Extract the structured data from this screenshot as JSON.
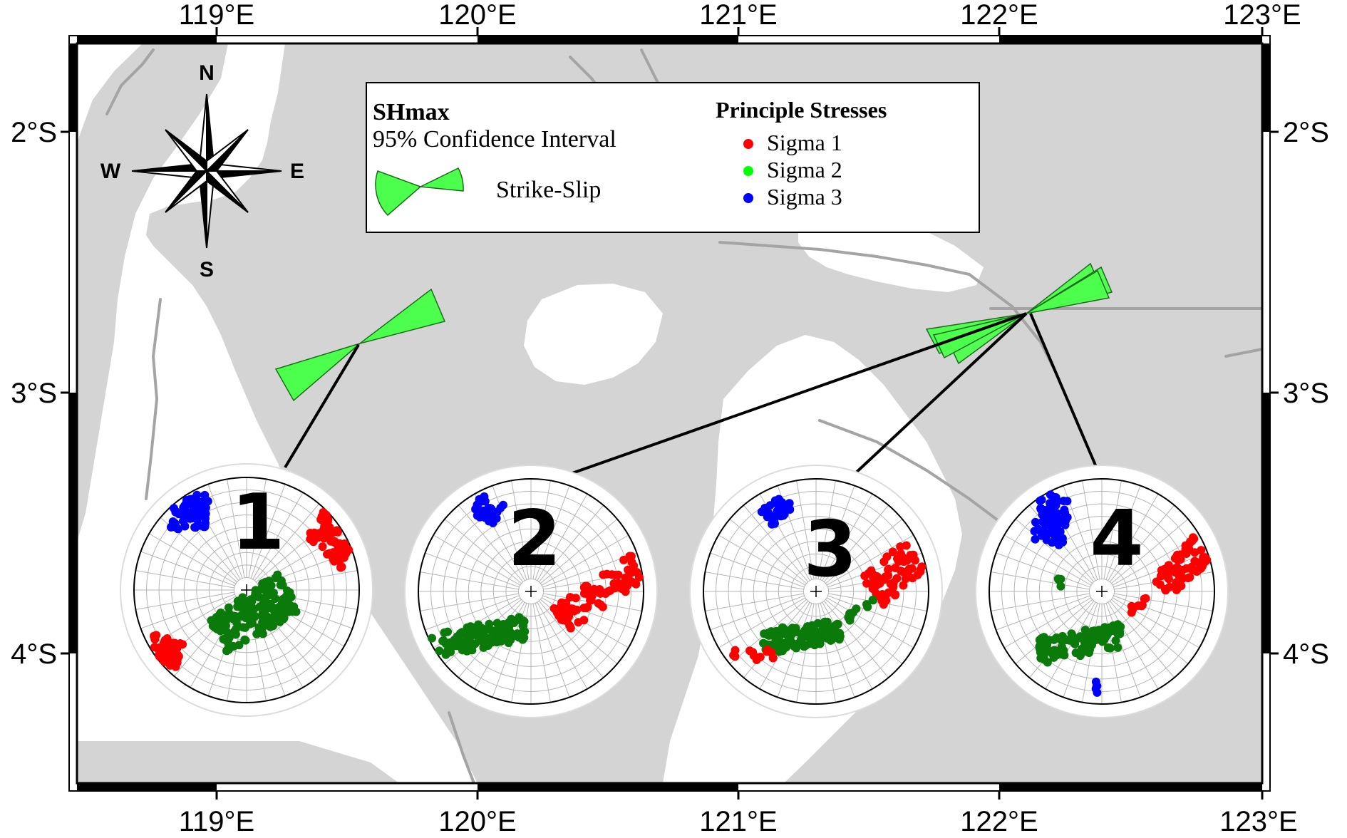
{
  "map": {
    "lon_ticks": [
      "119°E",
      "120°E",
      "121°E",
      "122°E",
      "123°E"
    ],
    "lat_ticks": [
      "2°S",
      "3°S",
      "4°S"
    ],
    "colors": {
      "land": "#d4d4d4",
      "sea": "#ffffff",
      "faults": "#a4a4a4",
      "shmax_wedge": "#4dff4d"
    }
  },
  "compass": {
    "icon": "compass-rose-icon",
    "n": "N",
    "s": "S",
    "e": "E",
    "w": "W"
  },
  "legend": {
    "shmax_title": "SHmax",
    "shmax_subtitle": "95% Confidence Interval",
    "wedge_label": "Strike-Slip",
    "stress_title": "Principle Stresses",
    "stresses": [
      {
        "label": "Sigma 1",
        "color": "#ff0000"
      },
      {
        "label": "Sigma 2",
        "color": "#00ff00"
      },
      {
        "label": "Sigma 3",
        "color": "#0000ff"
      }
    ]
  },
  "stereonets": [
    {
      "label": "1"
    },
    {
      "label": "2"
    },
    {
      "label": "3"
    },
    {
      "label": "4"
    }
  ],
  "point_colors": {
    "sigma1": "#ff0000",
    "sigma2_plot": "#0a7a0a",
    "sigma3": "#0000ff"
  }
}
